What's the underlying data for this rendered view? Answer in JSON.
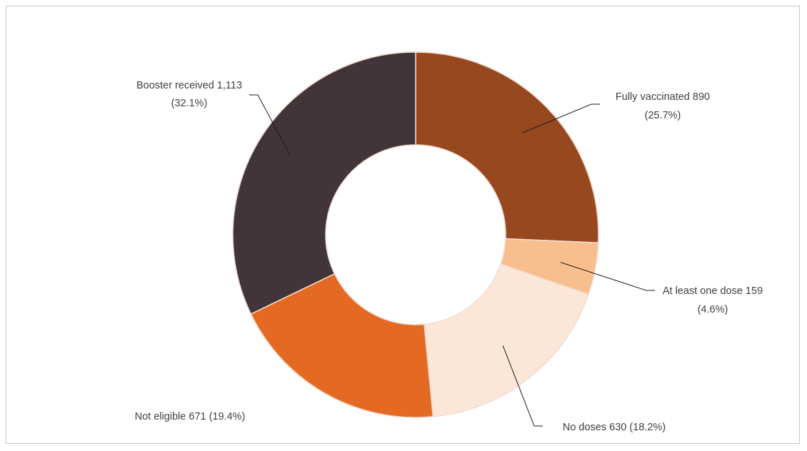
{
  "chart_data": {
    "type": "pie",
    "donut": true,
    "title": "",
    "slices": [
      {
        "name": "Fully vaccinated",
        "value": 890,
        "value_label": "890",
        "percent_label": "(25.7%)",
        "color": "#97481f"
      },
      {
        "name": "At least one dose",
        "value": 159,
        "value_label": "159",
        "percent_label": "(4.6%)",
        "color": "#f8bf8e"
      },
      {
        "name": "No doses",
        "value": 630,
        "value_label": "630",
        "percent_label": "(18.2%)",
        "color": "#fbe6d8"
      },
      {
        "name": "Not eligible",
        "value": 671,
        "value_label": "671",
        "percent_label": "(19.4%)",
        "color": "#e46a24"
      },
      {
        "name": "Booster received",
        "value": 1113,
        "value_label": "1,113",
        "percent_label": "(32.1%)",
        "color": "#413539"
      }
    ],
    "slice_border_color": "#f3dcd0",
    "legend": "none"
  }
}
